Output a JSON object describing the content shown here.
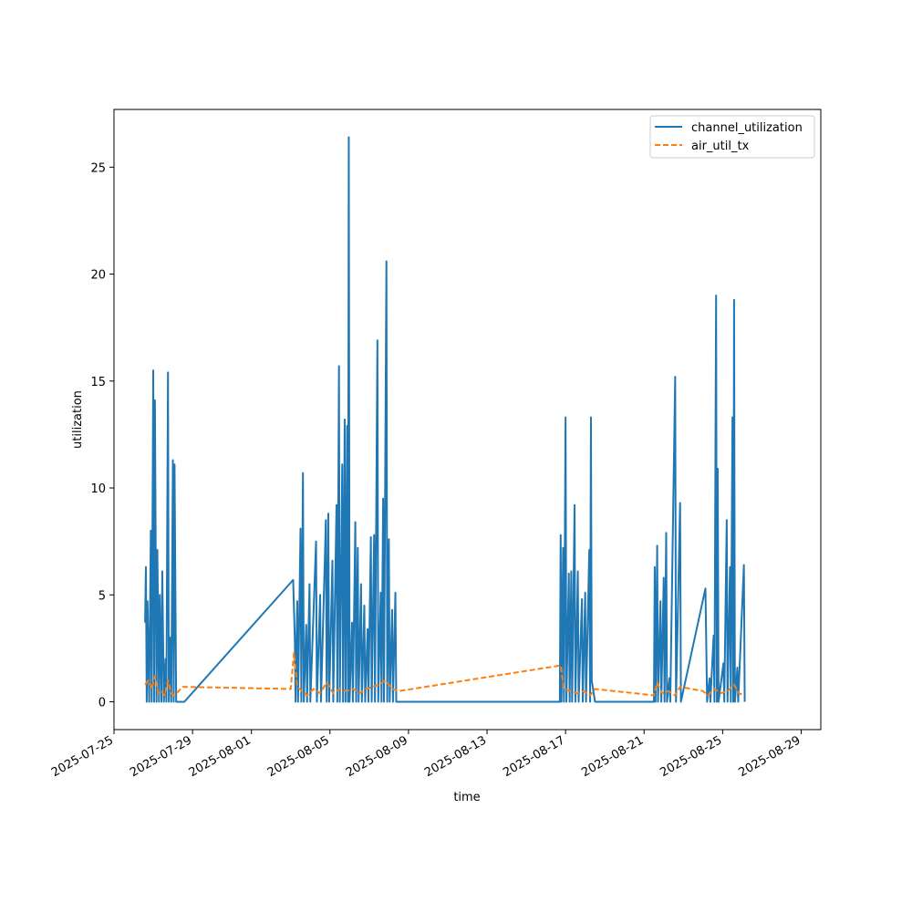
{
  "chart_data": {
    "type": "line",
    "title": "",
    "xlabel": "time",
    "ylabel": "utilization",
    "xlim": [
      "2025-07-25",
      "2025-08-30"
    ],
    "ylim": [
      -1.3,
      27.7
    ],
    "x_ticks": [
      "2025-07-25",
      "2025-07-29",
      "2025-08-01",
      "2025-08-05",
      "2025-08-09",
      "2025-08-13",
      "2025-08-17",
      "2025-08-21",
      "2025-08-25",
      "2025-08-29"
    ],
    "y_ticks": [
      0,
      5,
      10,
      15,
      20,
      25
    ],
    "grid": false,
    "legend_position": "upper right",
    "series": [
      {
        "name": "channel_utilization",
        "color": "#1f77b4",
        "dash": "solid",
        "points": [
          [
            "2025-07-26 14:00",
            3.7
          ],
          [
            "2025-07-26 15:00",
            6.3
          ],
          [
            "2025-07-26 16:00",
            0
          ],
          [
            "2025-07-26 17:00",
            4.7
          ],
          [
            "2025-07-26 19:00",
            0
          ],
          [
            "2025-07-26 21:00",
            8.0
          ],
          [
            "2025-07-26 22:00",
            0
          ],
          [
            "2025-07-27 00:00",
            15.5
          ],
          [
            "2025-07-27 01:00",
            0
          ],
          [
            "2025-07-27 02:00",
            14.1
          ],
          [
            "2025-07-27 04:00",
            0
          ],
          [
            "2025-07-27 05:00",
            7.1
          ],
          [
            "2025-07-27 07:00",
            0
          ],
          [
            "2025-07-27 08:00",
            5.0
          ],
          [
            "2025-07-27 10:00",
            0
          ],
          [
            "2025-07-27 11:00",
            6.1
          ],
          [
            "2025-07-27 13:00",
            0
          ],
          [
            "2025-07-27 15:00",
            2.0
          ],
          [
            "2025-07-27 16:00",
            0
          ],
          [
            "2025-07-27 18:00",
            15.4
          ],
          [
            "2025-07-27 19:00",
            0
          ],
          [
            "2025-07-27 21:00",
            3.0
          ],
          [
            "2025-07-27 22:00",
            0
          ],
          [
            "2025-07-28 00:00",
            11.3
          ],
          [
            "2025-07-28 01:00",
            0
          ],
          [
            "2025-07-28 02:00",
            11.1
          ],
          [
            "2025-07-28 04:00",
            0
          ],
          [
            "2025-07-28 14:00",
            0
          ],
          [
            "2025-08-03 03:00",
            5.7
          ],
          [
            "2025-08-03 05:00",
            3.0
          ],
          [
            "2025-08-03 06:00",
            0
          ],
          [
            "2025-08-03 08:00",
            4.7
          ],
          [
            "2025-08-03 09:00",
            0
          ],
          [
            "2025-08-03 12:00",
            8.1
          ],
          [
            "2025-08-03 13:00",
            0
          ],
          [
            "2025-08-03 15:00",
            10.7
          ],
          [
            "2025-08-03 16:00",
            0
          ],
          [
            "2025-08-03 19:00",
            3.6
          ],
          [
            "2025-08-03 20:00",
            0
          ],
          [
            "2025-08-03 23:00",
            5.5
          ],
          [
            "2025-08-04 00:00",
            0
          ],
          [
            "2025-08-04 07:00",
            7.5
          ],
          [
            "2025-08-04 08:00",
            0
          ],
          [
            "2025-08-04 12:00",
            5.0
          ],
          [
            "2025-08-04 13:00",
            0
          ],
          [
            "2025-08-04 19:00",
            8.5
          ],
          [
            "2025-08-04 20:00",
            0
          ],
          [
            "2025-08-04 22:00",
            8.8
          ],
          [
            "2025-08-04 23:00",
            0
          ],
          [
            "2025-08-05 03:00",
            6.6
          ],
          [
            "2025-08-05 04:00",
            0
          ],
          [
            "2025-08-05 08:00",
            9.2
          ],
          [
            "2025-08-05 09:00",
            0
          ],
          [
            "2025-08-05 11:00",
            15.7
          ],
          [
            "2025-08-05 12:00",
            0
          ],
          [
            "2025-08-05 15:00",
            11.1
          ],
          [
            "2025-08-05 16:00",
            0
          ],
          [
            "2025-08-05 18:00",
            13.2
          ],
          [
            "2025-08-05 19:00",
            0
          ],
          [
            "2025-08-05 21:00",
            12.9
          ],
          [
            "2025-08-05 22:00",
            0
          ],
          [
            "2025-08-05 23:00",
            26.4
          ],
          [
            "2025-08-06 00:00",
            0
          ],
          [
            "2025-08-06 03:00",
            3.7
          ],
          [
            "2025-08-06 04:00",
            0
          ],
          [
            "2025-08-06 07:00",
            8.4
          ],
          [
            "2025-08-06 08:00",
            0
          ],
          [
            "2025-08-06 10:00",
            7.2
          ],
          [
            "2025-08-06 11:00",
            0
          ],
          [
            "2025-08-06 14:00",
            5.5
          ],
          [
            "2025-08-06 15:00",
            0
          ],
          [
            "2025-08-06 18:00",
            4.5
          ],
          [
            "2025-08-06 19:00",
            0
          ],
          [
            "2025-08-06 22:00",
            3.4
          ],
          [
            "2025-08-06 23:00",
            0
          ],
          [
            "2025-08-07 02:00",
            7.7
          ],
          [
            "2025-08-07 03:00",
            0
          ],
          [
            "2025-08-07 06:00",
            7.8
          ],
          [
            "2025-08-07 07:00",
            0
          ],
          [
            "2025-08-07 10:00",
            16.9
          ],
          [
            "2025-08-07 11:00",
            0
          ],
          [
            "2025-08-07 14:00",
            5.1
          ],
          [
            "2025-08-07 15:00",
            0
          ],
          [
            "2025-08-07 17:00",
            9.5
          ],
          [
            "2025-08-07 18:00",
            0
          ],
          [
            "2025-08-07 21:00",
            20.6
          ],
          [
            "2025-08-07 22:00",
            0
          ],
          [
            "2025-08-08 00:00",
            7.6
          ],
          [
            "2025-08-08 01:00",
            0
          ],
          [
            "2025-08-08 04:00",
            4.3
          ],
          [
            "2025-08-08 05:00",
            0
          ],
          [
            "2025-08-08 08:00",
            5.1
          ],
          [
            "2025-08-08 09:00",
            0
          ],
          [
            "2025-08-08 12:00",
            0
          ],
          [
            "2025-08-16 17:00",
            0
          ],
          [
            "2025-08-16 18:00",
            7.8
          ],
          [
            "2025-08-16 19:00",
            0
          ],
          [
            "2025-08-16 21:00",
            7.2
          ],
          [
            "2025-08-16 22:00",
            0
          ],
          [
            "2025-08-17 00:00",
            13.3
          ],
          [
            "2025-08-17 01:00",
            0
          ],
          [
            "2025-08-17 04:00",
            6.0
          ],
          [
            "2025-08-17 05:00",
            0
          ],
          [
            "2025-08-17 07:00",
            6.1
          ],
          [
            "2025-08-17 08:00",
            0
          ],
          [
            "2025-08-17 11:00",
            9.2
          ],
          [
            "2025-08-17 12:00",
            0
          ],
          [
            "2025-08-17 15:00",
            6.1
          ],
          [
            "2025-08-17 16:00",
            0
          ],
          [
            "2025-08-17 20:00",
            4.8
          ],
          [
            "2025-08-17 21:00",
            0
          ],
          [
            "2025-08-18 00:00",
            5.1
          ],
          [
            "2025-08-18 01:00",
            0
          ],
          [
            "2025-08-18 05:00",
            7.1
          ],
          [
            "2025-08-18 06:00",
            0
          ],
          [
            "2025-08-18 07:00",
            13.3
          ],
          [
            "2025-08-18 08:00",
            1.0
          ],
          [
            "2025-08-18 12:00",
            0
          ],
          [
            "2025-08-21 12:00",
            0
          ],
          [
            "2025-08-21 13:00",
            6.3
          ],
          [
            "2025-08-21 14:00",
            0
          ],
          [
            "2025-08-21 16:00",
            7.3
          ],
          [
            "2025-08-21 17:00",
            0
          ],
          [
            "2025-08-21 20:00",
            4.7
          ],
          [
            "2025-08-21 21:00",
            0
          ],
          [
            "2025-08-22 00:00",
            5.8
          ],
          [
            "2025-08-22 01:00",
            0
          ],
          [
            "2025-08-22 03:00",
            7.9
          ],
          [
            "2025-08-22 04:00",
            0
          ],
          [
            "2025-08-22 07:00",
            1.1
          ],
          [
            "2025-08-22 08:00",
            0
          ],
          [
            "2025-08-22 14:00",
            15.2
          ],
          [
            "2025-08-22 15:00",
            0
          ],
          [
            "2025-08-22 20:00",
            9.3
          ],
          [
            "2025-08-22 21:00",
            0
          ],
          [
            "2025-08-24 03:00",
            5.3
          ],
          [
            "2025-08-24 05:00",
            0
          ],
          [
            "2025-08-24 08:00",
            1.1
          ],
          [
            "2025-08-24 09:00",
            0
          ],
          [
            "2025-08-24 13:00",
            3.1
          ],
          [
            "2025-08-24 14:00",
            0
          ],
          [
            "2025-08-24 16:00",
            19.0
          ],
          [
            "2025-08-24 17:00",
            0
          ],
          [
            "2025-08-24 18:00",
            10.9
          ],
          [
            "2025-08-24 19:00",
            0
          ],
          [
            "2025-08-25 01:00",
            1.8
          ],
          [
            "2025-08-25 02:00",
            0
          ],
          [
            "2025-08-25 05:00",
            8.5
          ],
          [
            "2025-08-25 06:00",
            0
          ],
          [
            "2025-08-25 09:00",
            6.3
          ],
          [
            "2025-08-25 10:00",
            0
          ],
          [
            "2025-08-25 12:00",
            13.3
          ],
          [
            "2025-08-25 13:00",
            0
          ],
          [
            "2025-08-25 14:00",
            18.8
          ],
          [
            "2025-08-25 15:00",
            0
          ],
          [
            "2025-08-25 18:00",
            1.6
          ],
          [
            "2025-08-25 19:00",
            0
          ],
          [
            "2025-08-26 02:00",
            6.4
          ],
          [
            "2025-08-26 03:00",
            0
          ]
        ]
      },
      {
        "name": "air_util_tx",
        "color": "#ff7f0e",
        "dash": "dashed",
        "points": [
          [
            "2025-07-26 14:00",
            0.8
          ],
          [
            "2025-07-26 18:00",
            1.0
          ],
          [
            "2025-07-26 22:00",
            0.6
          ],
          [
            "2025-07-27 02:00",
            1.2
          ],
          [
            "2025-07-27 06:00",
            0.4
          ],
          [
            "2025-07-27 10:00",
            0.5
          ],
          [
            "2025-07-27 14:00",
            0.3
          ],
          [
            "2025-07-27 18:00",
            1.0
          ],
          [
            "2025-07-27 22:00",
            0.4
          ],
          [
            "2025-07-28 02:00",
            0.3
          ],
          [
            "2025-07-28 12:00",
            0.7
          ],
          [
            "2025-08-03 00:00",
            0.6
          ],
          [
            "2025-08-03 04:00",
            2.3
          ],
          [
            "2025-08-03 08:00",
            0.7
          ],
          [
            "2025-08-03 14:00",
            0.5
          ],
          [
            "2025-08-03 20:00",
            0.3
          ],
          [
            "2025-08-04 04:00",
            0.6
          ],
          [
            "2025-08-04 12:00",
            0.4
          ],
          [
            "2025-08-04 20:00",
            0.9
          ],
          [
            "2025-08-05 04:00",
            0.4
          ],
          [
            "2025-08-05 12:00",
            0.6
          ],
          [
            "2025-08-05 20:00",
            0.5
          ],
          [
            "2025-08-06 04:00",
            0.6
          ],
          [
            "2025-08-06 12:00",
            0.4
          ],
          [
            "2025-08-06 20:00",
            0.6
          ],
          [
            "2025-08-07 04:00",
            0.7
          ],
          [
            "2025-08-07 12:00",
            0.8
          ],
          [
            "2025-08-07 20:00",
            1.0
          ],
          [
            "2025-08-08 04:00",
            0.6
          ],
          [
            "2025-08-08 12:00",
            0.5
          ],
          [
            "2025-08-16 18:00",
            1.7
          ],
          [
            "2025-08-16 22:00",
            0.6
          ],
          [
            "2025-08-17 06:00",
            0.5
          ],
          [
            "2025-08-17 14:00",
            0.4
          ],
          [
            "2025-08-17 22:00",
            0.5
          ],
          [
            "2025-08-18 06:00",
            0.3
          ],
          [
            "2025-08-18 12:00",
            0.6
          ],
          [
            "2025-08-21 12:00",
            0.3
          ],
          [
            "2025-08-21 16:00",
            0.9
          ],
          [
            "2025-08-21 22:00",
            0.4
          ],
          [
            "2025-08-22 06:00",
            0.5
          ],
          [
            "2025-08-22 14:00",
            0.3
          ],
          [
            "2025-08-22 20:00",
            0.7
          ],
          [
            "2025-08-24 00:00",
            0.5
          ],
          [
            "2025-08-24 06:00",
            0.3
          ],
          [
            "2025-08-24 14:00",
            0.6
          ],
          [
            "2025-08-24 22:00",
            0.4
          ],
          [
            "2025-08-25 06:00",
            0.5
          ],
          [
            "2025-08-25 14:00",
            0.8
          ],
          [
            "2025-08-25 20:00",
            0.4
          ],
          [
            "2025-08-26 02:00",
            0.3
          ]
        ]
      }
    ]
  }
}
